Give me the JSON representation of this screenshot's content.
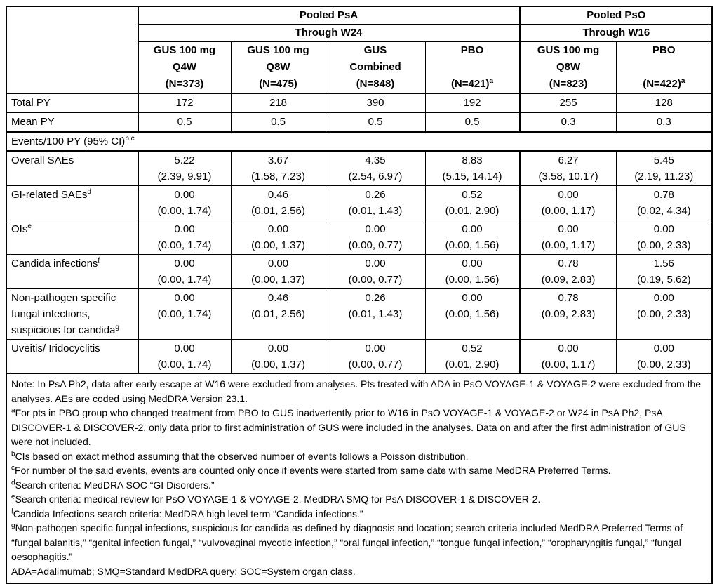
{
  "table": {
    "group_header": [
      {
        "label": "Pooled PsA",
        "period": "Through W24"
      },
      {
        "label": "Pooled PsO",
        "period": "Through W16"
      }
    ],
    "columns": [
      {
        "line1": "GUS 100 mg",
        "line2": "Q4W",
        "line3": "(N=373)",
        "sup": ""
      },
      {
        "line1": "GUS 100 mg",
        "line2": "Q8W",
        "line3": "(N=475)",
        "sup": ""
      },
      {
        "line1": "GUS",
        "line2": "Combined",
        "line3": "(N=848)",
        "sup": ""
      },
      {
        "line1": "PBO",
        "line2": "",
        "line3": "(N=421)",
        "sup": "a"
      },
      {
        "line1": "GUS 100 mg",
        "line2": "Q8W",
        "line3": "(N=823)",
        "sup": ""
      },
      {
        "line1": "PBO",
        "line2": "",
        "line3": "(N=422)",
        "sup": "a"
      }
    ],
    "py_rows": [
      {
        "label": "Total PY",
        "values": [
          "172",
          "218",
          "390",
          "192",
          "255",
          "128"
        ]
      },
      {
        "label": "Mean PY",
        "values": [
          "0.5",
          "0.5",
          "0.5",
          "0.5",
          "0.3",
          "0.3"
        ]
      }
    ],
    "section_header": {
      "text": "Events/100 PY (95% CI)",
      "sup": "b,c"
    },
    "event_rows": [
      {
        "label": "Overall SAEs",
        "sup": "",
        "rates": [
          "5.22",
          "3.67",
          "4.35",
          "8.83",
          "6.27",
          "5.45"
        ],
        "cis": [
          "(2.39, 9.91)",
          "(1.58, 7.23)",
          "(2.54, 6.97)",
          "(5.15, 14.14)",
          "(3.58, 10.17)",
          "(2.19, 11.23)"
        ]
      },
      {
        "label": "GI-related SAEs",
        "sup": "d",
        "rates": [
          "0.00",
          "0.46",
          "0.26",
          "0.52",
          "0.00",
          "0.78"
        ],
        "cis": [
          "(0.00, 1.74)",
          "(0.01, 2.56)",
          "(0.01, 1.43)",
          "(0.01, 2.90)",
          "(0.00, 1.17)",
          "(0.02, 4.34)"
        ]
      },
      {
        "label": "OIs",
        "sup": "e",
        "rates": [
          "0.00",
          "0.00",
          "0.00",
          "0.00",
          "0.00",
          "0.00"
        ],
        "cis": [
          "(0.00, 1.74)",
          "(0.00, 1.37)",
          "(0.00, 0.77)",
          "(0.00, 1.56)",
          "(0.00, 1.17)",
          "(0.00, 2.33)"
        ]
      },
      {
        "label": "Candida infections",
        "sup": "f",
        "rates": [
          "0.00",
          "0.00",
          "0.00",
          "0.00",
          "0.78",
          "1.56"
        ],
        "cis": [
          "(0.00, 1.74)",
          "(0.00, 1.37)",
          "(0.00, 0.77)",
          "(0.00, 1.56)",
          "(0.09, 2.83)",
          "(0.19, 5.62)"
        ]
      },
      {
        "label": "Non-pathogen specific fungal infections, suspicious for candida",
        "sup": "g",
        "rates": [
          "0.00",
          "0.46",
          "0.26",
          "0.00",
          "0.78",
          "0.00"
        ],
        "cis": [
          "(0.00, 1.74)",
          "(0.01, 2.56)",
          "(0.01, 1.43)",
          "(0.00, 1.56)",
          "(0.09, 2.83)",
          "(0.00, 2.33)"
        ]
      },
      {
        "label": "Uveitis/ Iridocyclitis",
        "sup": "",
        "rates": [
          "0.00",
          "0.00",
          "0.00",
          "0.52",
          "0.00",
          "0.00"
        ],
        "cis": [
          "(0.00, 1.74)",
          "(0.00, 1.37)",
          "(0.00, 0.77)",
          "(0.01, 2.90)",
          "(0.00, 1.17)",
          "(0.00, 2.33)"
        ]
      }
    ]
  },
  "footnotes": [
    {
      "sup": "",
      "text": "Note: In PsA Ph2, data after early escape at W16 were excluded from analyses. Pts treated with ADA in PsO VOYAGE-1 & VOYAGE-2 were excluded from the analyses. AEs are coded using MedDRA Version 23.1."
    },
    {
      "sup": "a",
      "text": "For pts in PBO group who changed treatment from PBO to GUS inadvertently prior to W16 in PsO VOYAGE-1 & VOYAGE-2 or W24 in PsA Ph2, PsA DISCOVER-1 & DISCOVER-2, only data prior to first administration of GUS were included in the analyses. Data on and after the first administration of GUS were not included."
    },
    {
      "sup": "b",
      "text": "CIs based on exact method assuming that the observed number of events follows a Poisson distribution."
    },
    {
      "sup": "c",
      "text": "For number of the said events, events are counted only once if events were started from same date with same MedDRA Preferred Terms."
    },
    {
      "sup": "d",
      "text": "Search criteria: MedDRA SOC “GI Disorders.”"
    },
    {
      "sup": "e",
      "text": "Search criteria: medical review for PsO VOYAGE-1 & VOYAGE-2, MedDRA SMQ for PsA DISCOVER-1 & DISCOVER-2."
    },
    {
      "sup": "f",
      "text": "Candida Infections search criteria: MedDRA high level term “Candida infections.”"
    },
    {
      "sup": "g",
      "text": "Non-pathogen specific fungal infections, suspicious for candida as defined by diagnosis and location; search criteria included MedDRA Preferred Terms of “fungal balanitis,” “genital infection fungal,” “vulvovaginal mycotic infection,” “oral fungal infection,” “tongue fungal infection,” “oropharyngitis fungal,” “fungal oesophagitis.”"
    },
    {
      "sup": "",
      "text": "ADA=Adalimumab; SMQ=Standard MedDRA query; SOC=System organ class."
    }
  ]
}
